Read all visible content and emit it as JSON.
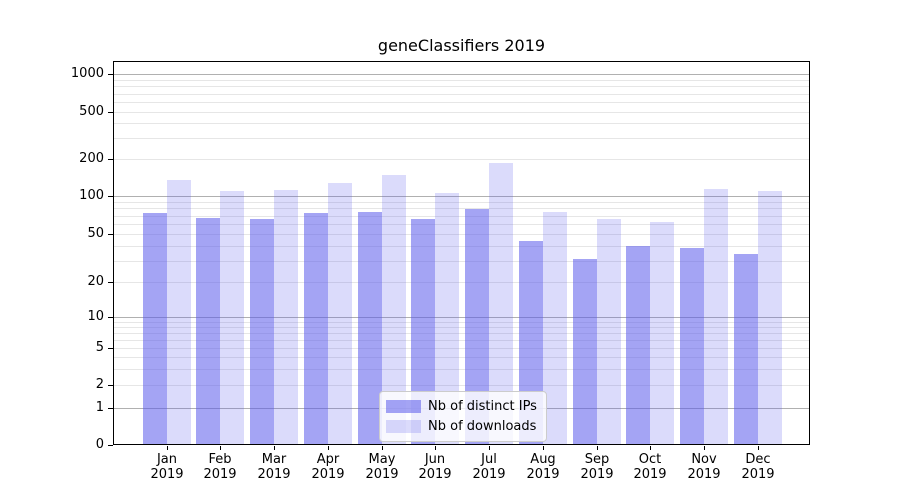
{
  "chart_data": {
    "type": "bar",
    "title": "geneClassifiers 2019",
    "x_categories": [
      "Jan",
      "Feb",
      "Mar",
      "Apr",
      "May",
      "Jun",
      "Jul",
      "Aug",
      "Sep",
      "Oct",
      "Nov",
      "Dec"
    ],
    "x_year": "2019",
    "series": [
      {
        "name": "Nb of distinct IPs",
        "color": "rgba(90,90,235,0.55)",
        "values": [
          73,
          67,
          66,
          73,
          75,
          66,
          79,
          44,
          31,
          40,
          38,
          34
        ]
      },
      {
        "name": "Nb of downloads",
        "color": "rgba(90,90,235,0.22)",
        "values": [
          135,
          110,
          111,
          127,
          148,
          106,
          186,
          75,
          66,
          62,
          113,
          110
        ]
      }
    ],
    "yscale": "symlog",
    "yticks": [
      0,
      1,
      2,
      5,
      10,
      20,
      50,
      100,
      200,
      500,
      1000
    ],
    "ylim": [
      0,
      1270
    ],
    "grid": true,
    "legend_position": "lower-center",
    "grid_major_color": "#b0b0b0",
    "grid_minor_color": "#e6e6e6",
    "axis_color": "#000000"
  }
}
